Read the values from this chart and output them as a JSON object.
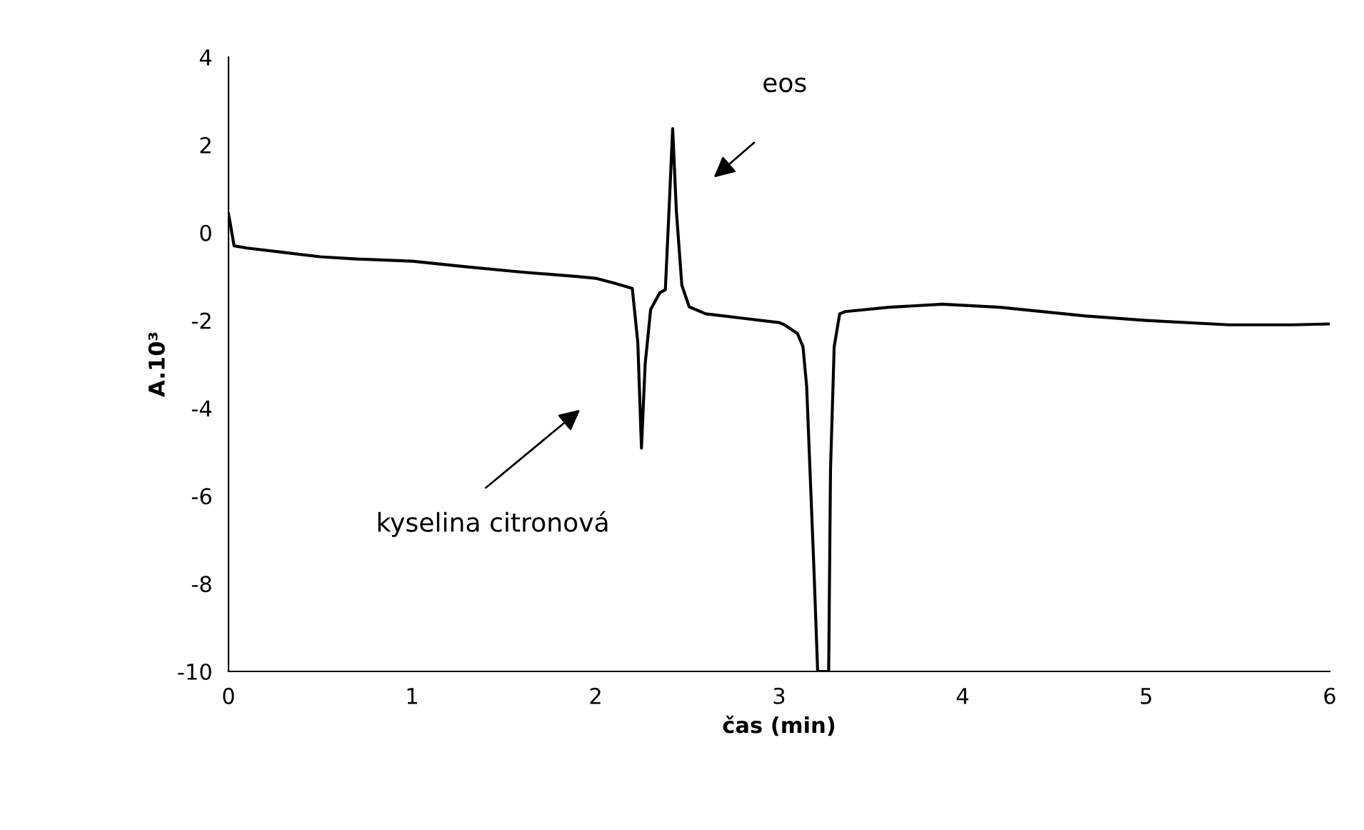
{
  "chart_data": {
    "type": "line",
    "xlabel": "čas (min)",
    "ylabel": "A.10³",
    "xlim": [
      0,
      6
    ],
    "xticks": [
      0,
      1,
      2,
      3,
      4,
      5,
      6
    ],
    "ylim": [
      -10,
      4
    ],
    "yticks": [
      -10,
      -8,
      -6,
      -4,
      -2,
      0,
      2,
      4
    ],
    "grid": false,
    "legend": false,
    "marker": "none",
    "line_style": "solid",
    "series": [
      {
        "color": "#000000",
        "x": [
          0,
          0.01,
          0.03,
          0.1,
          0.3,
          0.5,
          0.7,
          1.0,
          1.3,
          1.6,
          1.9,
          2.0,
          2.1,
          2.2,
          2.23,
          2.25,
          2.27,
          2.3,
          2.35,
          2.38,
          2.4,
          2.42,
          2.44,
          2.47,
          2.51,
          2.6,
          2.8,
          3.0,
          3.03,
          3.1,
          3.13,
          3.15,
          3.19,
          3.21,
          3.27,
          3.28,
          3.3,
          3.33,
          3.36,
          3.6,
          3.89,
          4.2,
          4.67,
          5.0,
          5.45,
          5.8,
          6.0
        ],
        "values": [
          0.42,
          0.2,
          -0.3,
          -0.35,
          -0.45,
          -0.55,
          -0.6,
          -0.65,
          -0.78,
          -0.9,
          -1.0,
          -1.04,
          -1.15,
          -1.27,
          -2.5,
          -4.91,
          -3.0,
          -1.75,
          -1.37,
          -1.3,
          0.5,
          2.37,
          0.5,
          -1.2,
          -1.69,
          -1.85,
          -1.95,
          -2.05,
          -2.1,
          -2.3,
          -2.6,
          -3.5,
          -7.7,
          -10,
          -10,
          -5.4,
          -2.6,
          -1.85,
          -1.8,
          -1.7,
          -1.63,
          -1.7,
          -1.9,
          -2.0,
          -2.1,
          -2.1,
          -2.08
        ]
      }
    ],
    "annotations": [
      "eos",
      "kyselina citronová"
    ]
  }
}
